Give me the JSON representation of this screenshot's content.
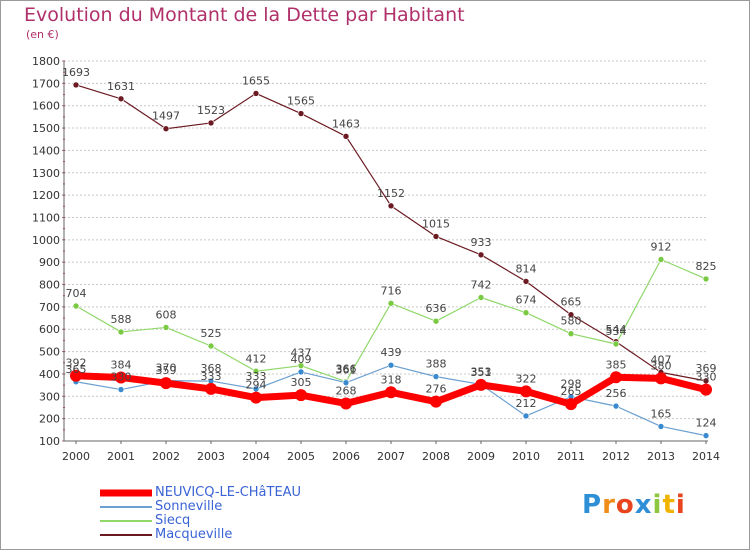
{
  "header": {
    "title": "Evolution du Montant de la Dette par Habitant",
    "subtitle": "(en €)"
  },
  "logo": {
    "text": "Proxiti",
    "letters": [
      "P",
      "r",
      "o",
      "x",
      "i",
      "t",
      "i"
    ],
    "colors": [
      "#2f8fd6",
      "#f08c1a",
      "#e8451e",
      "#2f8fd6",
      "#8dc63f",
      "#f0b400",
      "#e8451e"
    ]
  },
  "chart_data": {
    "type": "line",
    "title": "Evolution du Montant de la Dette par Habitant",
    "subtitle": "(en €)",
    "xlabel": "",
    "ylabel": "",
    "x": [
      "2000",
      "2001",
      "2002",
      "2003",
      "2004",
      "2005",
      "2006",
      "2007",
      "2008",
      "2009",
      "2010",
      "2011",
      "2012",
      "2013",
      "2014"
    ],
    "ylim": [
      100,
      1800
    ],
    "yticks": [
      100,
      200,
      300,
      400,
      500,
      600,
      700,
      800,
      900,
      1000,
      1100,
      1200,
      1300,
      1400,
      1500,
      1600,
      1700,
      1800
    ],
    "grid": "horizontal dashed",
    "legend_position": "bottom-left",
    "series": [
      {
        "name": "Macqueville",
        "color": "#6b1a22",
        "marker": "#6b1a22",
        "width": 1.2,
        "values": [
          1693,
          1631,
          1497,
          1523,
          1655,
          1565,
          1463,
          1152,
          1015,
          933,
          814,
          665,
          544,
          407,
          369
        ]
      },
      {
        "name": "Siecq",
        "color": "#8fd86a",
        "marker": "#7ac943",
        "width": 1.2,
        "values": [
          704,
          588,
          608,
          525,
          412,
          437,
          366,
          716,
          636,
          742,
          674,
          580,
          534,
          912,
          825
        ]
      },
      {
        "name": "Sonneville",
        "color": "#6ba0d0",
        "marker": "#3a8ad0",
        "width": 1.2,
        "values": [
          365,
          330,
          370,
          368,
          333,
          409,
          361,
          439,
          388,
          353,
          212,
          298,
          256,
          165,
          124
        ]
      },
      {
        "name": "NEUVICQ-LE-CHÂTEAU",
        "color": "#ff0000",
        "marker": "#ff0000",
        "width": 7,
        "values": [
          392,
          384,
          359,
          333,
          294,
          305,
          268,
          318,
          276,
          351,
          322,
          265,
          385,
          380,
          330
        ]
      }
    ],
    "legend": [
      "NEUVICQ-LE-CHâTEAU",
      "Sonneville",
      "Siecq",
      "Macqueville"
    ]
  }
}
